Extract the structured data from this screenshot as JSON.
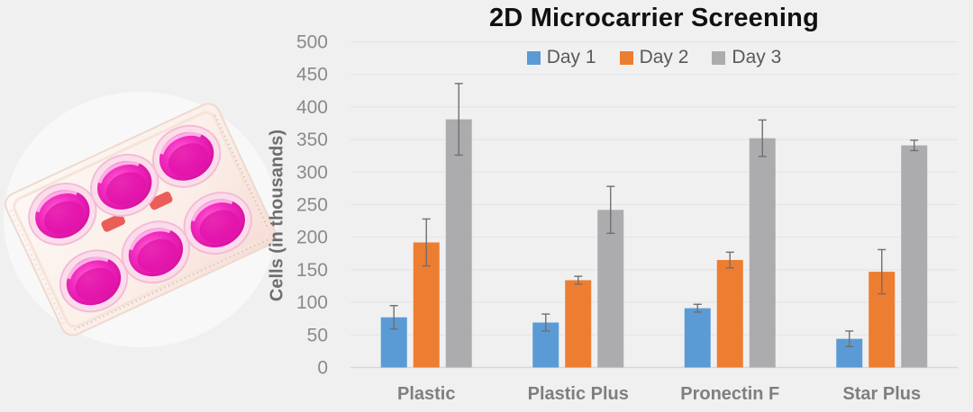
{
  "page": {
    "background_color": "#f0f0f0"
  },
  "illustration": {
    "name": "six-well-culture-plate-photo",
    "media_color": "#ec1bb4",
    "media_color_dark": "#cf0798",
    "media_color_light": "#ff6fd3",
    "rim_color": "#fbdcea",
    "plate_color": "#fcf5ef",
    "red_band_color": "#e8433e"
  },
  "chart_data": {
    "type": "bar",
    "title": "2D Microcarrier Screening",
    "ylabel": "Cells (in thousands)",
    "xlabel": "",
    "categories": [
      "Plastic",
      "Plastic Plus",
      "Pronectin F",
      "Star Plus"
    ],
    "series": [
      {
        "name": "Day 1",
        "color": "#5B9BD5",
        "values": [
          77,
          69,
          91,
          44
        ],
        "errors": [
          18,
          13,
          6,
          12
        ]
      },
      {
        "name": "Day 2",
        "color": "#ED7D31",
        "values": [
          192,
          134,
          165,
          147
        ],
        "errors": [
          36,
          6,
          12,
          34
        ]
      },
      {
        "name": "Day 3",
        "color": "#ACACAF",
        "values": [
          381,
          242,
          352,
          341
        ],
        "errors": [
          55,
          36,
          28,
          8
        ]
      }
    ],
    "ylim": [
      0,
      500
    ],
    "ytick_step": 50,
    "grid": true,
    "legend_position": "top-center",
    "error_bars": true,
    "gridline_color": "#e3e5e7",
    "axisline_color": "#d7d7d9",
    "errorbar_color": "#6f6f6f",
    "tick_label_color": "#8a8a8a",
    "category_label_color": "#7f7f7f"
  }
}
